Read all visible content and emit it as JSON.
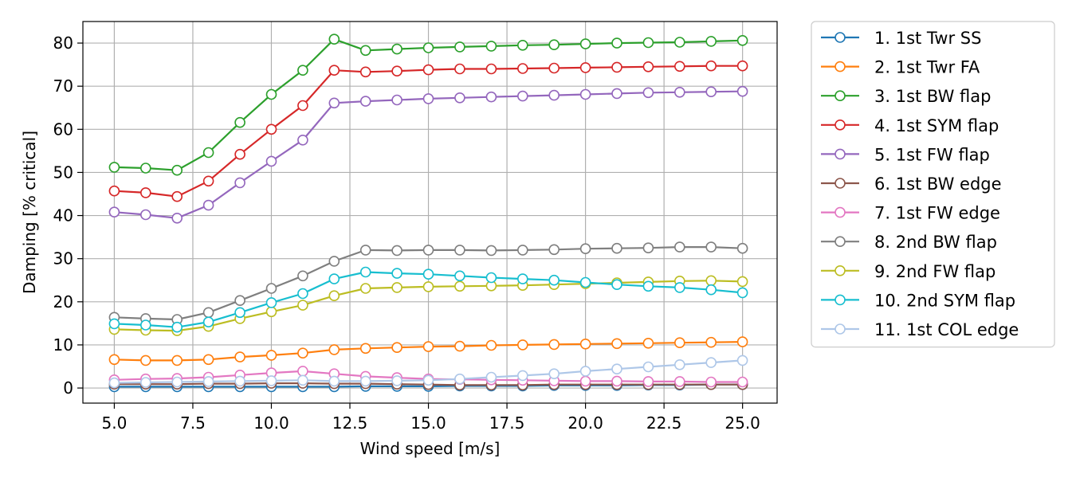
{
  "chart_data": {
    "type": "line",
    "title": "",
    "xlabel": "Wind speed [m/s]",
    "ylabel": "Damping [% critical]",
    "xlim": [
      4,
      26.1
    ],
    "ylim": [
      -3.5,
      85
    ],
    "xticks": [
      5.0,
      7.5,
      10.0,
      12.5,
      15.0,
      17.5,
      20.0,
      22.5,
      25.0
    ],
    "xtick_labels": [
      "5.0",
      "7.5",
      "10.0",
      "12.5",
      "15.0",
      "17.5",
      "20.0",
      "22.5",
      "25.0"
    ],
    "yticks": [
      0,
      10,
      20,
      30,
      40,
      50,
      60,
      70,
      80
    ],
    "ytick_labels": [
      "0",
      "10",
      "20",
      "30",
      "40",
      "50",
      "60",
      "70",
      "80"
    ],
    "grid": true,
    "legend_position": "outside-right",
    "markers": "hollow-circle",
    "x": [
      5,
      6,
      7,
      8,
      9,
      10,
      11,
      12,
      13,
      14,
      15,
      16,
      17,
      18,
      19,
      20,
      21,
      22,
      23,
      24,
      25
    ],
    "series": [
      {
        "name": "1. 1st Twr SS",
        "color": "#1f77b4",
        "values": [
          0.3,
          0.3,
          0.3,
          0.3,
          0.3,
          0.3,
          0.3,
          0.3,
          0.4,
          0.4,
          0.4,
          0.5,
          0.5,
          0.5,
          0.6,
          0.6,
          0.6,
          0.7,
          0.7,
          0.8,
          0.8
        ]
      },
      {
        "name": "2. 1st Twr FA",
        "color": "#ff7f0e",
        "values": [
          6.6,
          6.4,
          6.4,
          6.6,
          7.2,
          7.6,
          8.1,
          8.9,
          9.2,
          9.4,
          9.6,
          9.7,
          9.9,
          10.0,
          10.1,
          10.2,
          10.3,
          10.4,
          10.5,
          10.6,
          10.7
        ]
      },
      {
        "name": "3. 1st BW flap",
        "color": "#2ca02c",
        "values": [
          51.2,
          51.0,
          50.5,
          54.6,
          61.6,
          68.1,
          73.7,
          80.9,
          78.3,
          78.6,
          78.9,
          79.1,
          79.3,
          79.5,
          79.6,
          79.8,
          80.0,
          80.1,
          80.2,
          80.4,
          80.6
        ]
      },
      {
        "name": "4. 1st SYM flap",
        "color": "#d62728",
        "values": [
          45.7,
          45.3,
          44.4,
          48.0,
          54.2,
          60.0,
          65.5,
          73.7,
          73.3,
          73.5,
          73.8,
          74.0,
          74.0,
          74.1,
          74.2,
          74.3,
          74.4,
          74.5,
          74.6,
          74.7,
          74.7
        ]
      },
      {
        "name": "5. 1st FW flap",
        "color": "#9467bd",
        "values": [
          40.8,
          40.2,
          39.4,
          42.4,
          47.6,
          52.6,
          57.5,
          66.1,
          66.5,
          66.8,
          67.1,
          67.3,
          67.5,
          67.7,
          67.9,
          68.1,
          68.3,
          68.5,
          68.6,
          68.7,
          68.8
        ]
      },
      {
        "name": "6. 1st BW edge",
        "color": "#8c564b",
        "values": [
          0.9,
          0.9,
          0.9,
          1.0,
          1.0,
          1.1,
          1.1,
          1.0,
          1.0,
          0.9,
          0.8,
          0.7,
          0.7,
          0.7,
          0.8,
          0.8,
          0.8,
          0.8,
          0.8,
          0.8,
          0.8
        ]
      },
      {
        "name": "7. 1st FW edge",
        "color": "#e377c2",
        "values": [
          1.9,
          2.1,
          2.2,
          2.5,
          3.0,
          3.5,
          3.9,
          3.3,
          2.7,
          2.4,
          2.1,
          2.0,
          1.9,
          1.8,
          1.7,
          1.6,
          1.6,
          1.5,
          1.5,
          1.4,
          1.4
        ]
      },
      {
        "name": "8. 2nd BW flap",
        "color": "#7f7f7f",
        "values": [
          16.4,
          16.1,
          15.9,
          17.5,
          20.3,
          23.1,
          26.0,
          29.4,
          32.0,
          31.9,
          32.0,
          32.0,
          31.9,
          32.0,
          32.1,
          32.3,
          32.4,
          32.5,
          32.7,
          32.7,
          32.4
        ]
      },
      {
        "name": "9. 2nd FW flap",
        "color": "#bcbd22",
        "values": [
          13.6,
          13.4,
          13.3,
          14.3,
          16.1,
          17.7,
          19.2,
          21.4,
          23.1,
          23.3,
          23.5,
          23.6,
          23.7,
          23.8,
          24.0,
          24.2,
          24.4,
          24.6,
          24.8,
          24.9,
          24.7
        ]
      },
      {
        "name": "10. 2nd SYM flap",
        "color": "#17becf",
        "values": [
          14.9,
          14.6,
          14.1,
          15.3,
          17.5,
          19.8,
          21.9,
          25.3,
          26.9,
          26.6,
          26.4,
          26.0,
          25.6,
          25.3,
          25.0,
          24.5,
          24.0,
          23.6,
          23.3,
          22.8,
          22.1
        ]
      },
      {
        "name": "11. 1st COL edge",
        "color": "#aec7e8",
        "values": [
          1.2,
          1.3,
          1.4,
          1.5,
          1.6,
          1.7,
          1.8,
          1.6,
          1.6,
          1.7,
          1.8,
          2.1,
          2.5,
          2.9,
          3.3,
          3.9,
          4.4,
          4.9,
          5.4,
          5.9,
          6.4
        ]
      }
    ]
  }
}
